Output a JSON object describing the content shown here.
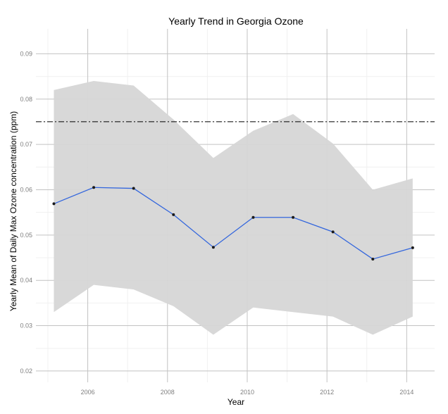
{
  "chart_data": {
    "type": "line",
    "title": "Yearly Trend in Georgia Ozone",
    "xlabel": "Year",
    "ylabel": "Yearly Mean of Daily Max Ozone concentration (ppm)",
    "xlim": [
      2004.7,
      2014.7
    ],
    "ylim": [
      0.0175,
      0.0955
    ],
    "x_ticks": [
      2006,
      2008,
      2010,
      2012,
      2014
    ],
    "y_ticks": [
      0.02,
      0.03,
      0.04,
      0.05,
      0.06,
      0.07,
      0.08,
      0.09
    ],
    "x_tick_labels": [
      "2006",
      "2008",
      "2010",
      "2012",
      "2014"
    ],
    "y_tick_labels": [
      "0.02",
      "0.03",
      "0.04",
      "0.05",
      "0.06",
      "0.07",
      "0.08",
      "0.09"
    ],
    "x": [
      2005.15,
      2006.15,
      2007.15,
      2008.15,
      2009.15,
      2010.15,
      2011.15,
      2012.15,
      2013.15,
      2014.15
    ],
    "series": [
      {
        "values": [
          0.0569,
          0.0605,
          0.0603,
          0.0545,
          0.0473,
          0.0539,
          0.0539,
          0.0507,
          0.0447,
          0.0472
        ],
        "color": "#3366dd"
      }
    ],
    "ribbon": {
      "upper": [
        0.082,
        0.084,
        0.083,
        0.0755,
        0.067,
        0.073,
        0.0767,
        0.0702,
        0.06,
        0.0625
      ],
      "lower": [
        0.033,
        0.039,
        0.038,
        0.0343,
        0.028,
        0.034,
        0.033,
        0.032,
        0.028,
        0.032
      ],
      "color": "#d6d6d6"
    },
    "reference_line": {
      "y": 0.075,
      "style": "dash-dot",
      "color": "#000000"
    },
    "grid": true,
    "legend": "none"
  }
}
